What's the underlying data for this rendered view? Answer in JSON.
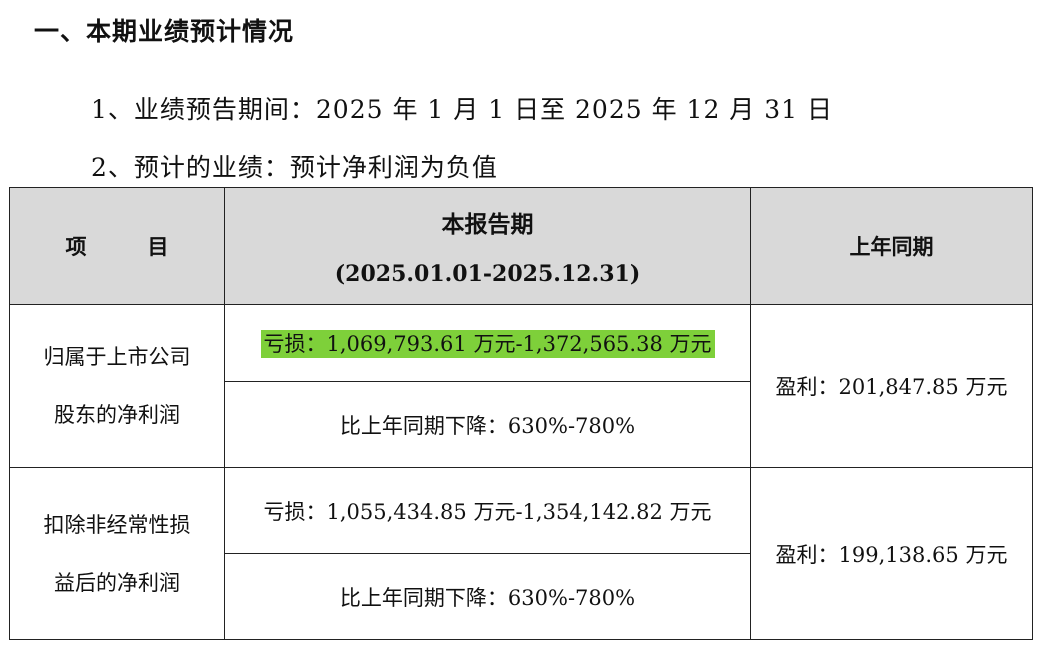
{
  "section_heading": "一、本期业绩预计情况",
  "forecast_period": "1、业绩预告期间：2025 年 1 月 1 日至 2025 年 12 月 31 日",
  "forecast_result": "2、预计的业绩：预计净利润为负值",
  "table": {
    "header_item": "项　目",
    "header_current_title": "本报告期",
    "header_current_range": "(2025.01.01-2025.12.31)",
    "header_prior": "上年同期",
    "rows": [
      {
        "label_line1": "归属于上市公司",
        "label_line2": "股东的净利润",
        "current_value": "亏损：1,069,793.61 万元-1,372,565.38 万元",
        "current_change": "比上年同期下降：630%-780%",
        "prior_value": "盈利：201,847.85 万元",
        "highlighted": true,
        "highlight_color": "#7ed03a"
      },
      {
        "label_line1": "扣除非经常性损",
        "label_line2": "益后的净利润",
        "current_value": "亏损：1,055,434.85 万元-1,354,142.82 万元",
        "current_change": "比上年同期下降：630%-780%",
        "prior_value": "盈利：199,138.65 万元",
        "highlighted": false
      }
    ]
  },
  "colors": {
    "header_background": "#d9d9d9",
    "highlight": "#7ed03a",
    "border": "#222222"
  }
}
